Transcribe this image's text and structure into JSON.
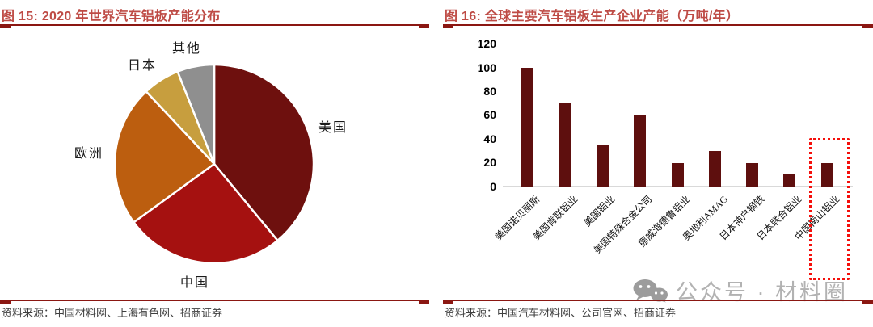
{
  "left_panel": {
    "title": "图 15:  2020 年世界汽车铝板产能分布",
    "source": "资料来源：中国材料网、上海有色网、招商证券"
  },
  "right_panel": {
    "title": "图 16:  全球主要汽车铝板生产企业产能（万吨/年）",
    "source": "资料来源：中国汽车材料网、公司官网、招商证券"
  },
  "watermark": {
    "icon": "wechat-icon",
    "text": "公众号 · 材料圈"
  },
  "colors": {
    "title_red": "#BE4B45",
    "rule_dark_red": "#8B1712",
    "bar_maroon": "#5E0F0E",
    "axis_gray": "#D9D9D9",
    "highlight_red": "#F50F0B",
    "watermark_gray": "#B2B2B2"
  },
  "chart_data": [
    {
      "type": "pie",
      "title": "2020 年世界汽车铝板产能分布",
      "categories": [
        "美国",
        "中国",
        "欧洲",
        "日本",
        "其他"
      ],
      "values": [
        39,
        26,
        23,
        6,
        6
      ],
      "unit": "percent (estimated from slice angles)",
      "colors": [
        "#6E100E",
        "#A51110",
        "#BC5E0F",
        "#C79E3E",
        "#8F8F8F"
      ],
      "start_angle": "12 o'clock",
      "direction": "clockwise",
      "legend_position": "labels around pie"
    },
    {
      "type": "bar",
      "title": "全球主要汽车铝板生产企业产能（万吨/年）",
      "categories": [
        "美国诺贝丽斯",
        "美国肯联铝业",
        "美国铝业",
        "美国特殊合金公司",
        "挪威海德鲁铝业",
        "奥地利AMAG",
        "日本神户钢铁",
        "日本联合铝业",
        "中国南山铝业"
      ],
      "values": [
        100,
        70,
        35,
        60,
        20,
        30,
        20,
        10,
        20
      ],
      "xlabel": "",
      "ylabel": "万吨/年",
      "ylim": [
        0,
        120
      ],
      "yticks": [
        0,
        20,
        40,
        60,
        80,
        100,
        120
      ],
      "grid": false,
      "bar_color": "#5E0F0E",
      "highlight": {
        "category": "中国南山铝业",
        "style": "red dotted box around last bar and its label area"
      }
    }
  ]
}
